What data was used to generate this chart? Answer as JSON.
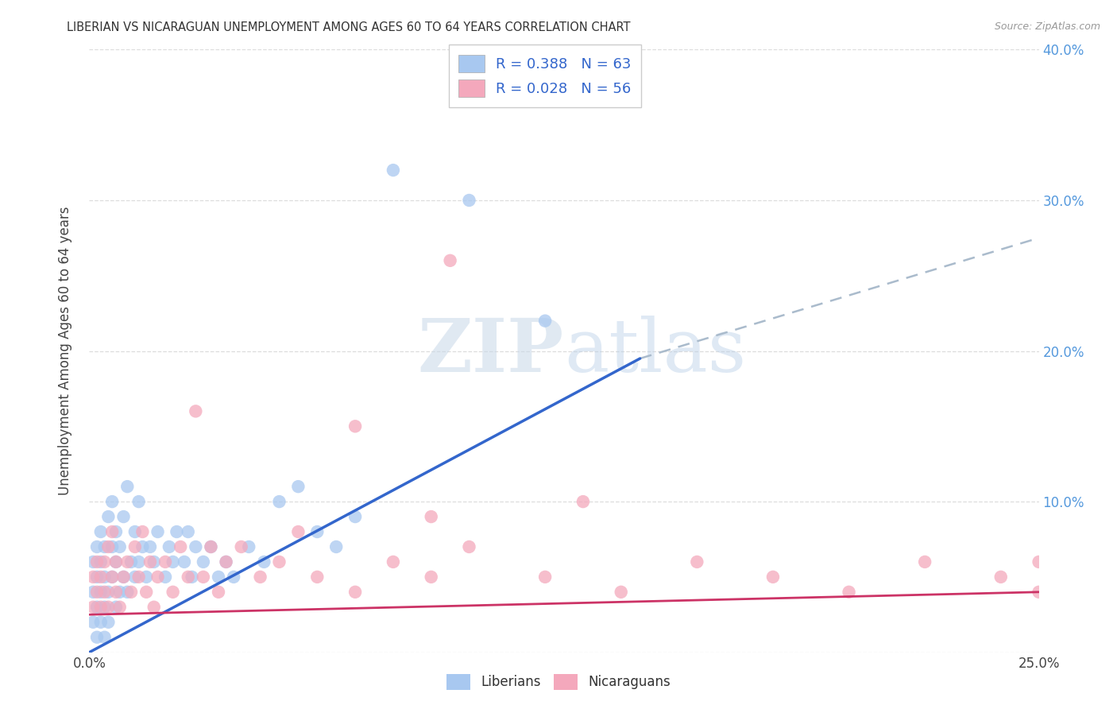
{
  "title": "LIBERIAN VS NICARAGUAN UNEMPLOYMENT AMONG AGES 60 TO 64 YEARS CORRELATION CHART",
  "source": "Source: ZipAtlas.com",
  "ylabel": "Unemployment Among Ages 60 to 64 years",
  "xlim": [
    0.0,
    0.25
  ],
  "ylim": [
    0.0,
    0.4
  ],
  "xticks": [
    0.0,
    0.05,
    0.1,
    0.15,
    0.2,
    0.25
  ],
  "yticks": [
    0.0,
    0.1,
    0.2,
    0.3,
    0.4
  ],
  "liberian_R": 0.388,
  "liberian_N": 63,
  "nicaraguan_R": 0.028,
  "nicaraguan_N": 56,
  "liberian_color": "#a8c8f0",
  "nicaraguan_color": "#f4a8bc",
  "liberian_line_color": "#3366cc",
  "nicaraguan_line_color": "#cc3366",
  "dashed_line_color": "#aabbcc",
  "background_color": "#ffffff",
  "grid_color": "#dddddd",
  "tick_color": "#5599dd",
  "watermark_color": "#dce8f4",
  "legend_labels": [
    "Liberians",
    "Nicaraguans"
  ],
  "lib_trend_x0": 0.0,
  "lib_trend_y0": 0.0,
  "lib_trend_x1": 0.145,
  "lib_trend_y1": 0.195,
  "dash_trend_x0": 0.145,
  "dash_trend_y0": 0.195,
  "dash_trend_x1": 0.25,
  "dash_trend_y1": 0.275,
  "nic_trend_x0": 0.0,
  "nic_trend_y0": 0.025,
  "nic_trend_x1": 0.25,
  "nic_trend_y1": 0.04,
  "lib_scatter_x": [
    0.001,
    0.001,
    0.001,
    0.002,
    0.002,
    0.002,
    0.002,
    0.003,
    0.003,
    0.003,
    0.003,
    0.004,
    0.004,
    0.004,
    0.004,
    0.005,
    0.005,
    0.005,
    0.006,
    0.006,
    0.006,
    0.007,
    0.007,
    0.007,
    0.008,
    0.008,
    0.009,
    0.009,
    0.01,
    0.01,
    0.011,
    0.012,
    0.012,
    0.013,
    0.013,
    0.014,
    0.015,
    0.016,
    0.017,
    0.018,
    0.02,
    0.021,
    0.022,
    0.023,
    0.025,
    0.026,
    0.027,
    0.028,
    0.03,
    0.032,
    0.034,
    0.036,
    0.038,
    0.042,
    0.046,
    0.05,
    0.055,
    0.06,
    0.065,
    0.07,
    0.08,
    0.1,
    0.12
  ],
  "lib_scatter_y": [
    0.02,
    0.04,
    0.06,
    0.01,
    0.03,
    0.05,
    0.07,
    0.02,
    0.04,
    0.06,
    0.08,
    0.01,
    0.03,
    0.05,
    0.07,
    0.02,
    0.09,
    0.04,
    0.05,
    0.07,
    0.1,
    0.03,
    0.06,
    0.08,
    0.04,
    0.07,
    0.05,
    0.09,
    0.04,
    0.11,
    0.06,
    0.05,
    0.08,
    0.06,
    0.1,
    0.07,
    0.05,
    0.07,
    0.06,
    0.08,
    0.05,
    0.07,
    0.06,
    0.08,
    0.06,
    0.08,
    0.05,
    0.07,
    0.06,
    0.07,
    0.05,
    0.06,
    0.05,
    0.07,
    0.06,
    0.1,
    0.11,
    0.08,
    0.07,
    0.09,
    0.32,
    0.3,
    0.22
  ],
  "nic_scatter_x": [
    0.001,
    0.001,
    0.002,
    0.002,
    0.003,
    0.003,
    0.004,
    0.004,
    0.005,
    0.005,
    0.006,
    0.006,
    0.007,
    0.007,
    0.008,
    0.009,
    0.01,
    0.011,
    0.012,
    0.013,
    0.014,
    0.015,
    0.016,
    0.017,
    0.018,
    0.02,
    0.022,
    0.024,
    0.026,
    0.028,
    0.03,
    0.032,
    0.034,
    0.036,
    0.04,
    0.045,
    0.05,
    0.055,
    0.06,
    0.07,
    0.08,
    0.09,
    0.1,
    0.12,
    0.14,
    0.16,
    0.18,
    0.2,
    0.22,
    0.24,
    0.25,
    0.25,
    0.09,
    0.07,
    0.13,
    0.095
  ],
  "nic_scatter_y": [
    0.03,
    0.05,
    0.04,
    0.06,
    0.03,
    0.05,
    0.04,
    0.06,
    0.03,
    0.07,
    0.05,
    0.08,
    0.04,
    0.06,
    0.03,
    0.05,
    0.06,
    0.04,
    0.07,
    0.05,
    0.08,
    0.04,
    0.06,
    0.03,
    0.05,
    0.06,
    0.04,
    0.07,
    0.05,
    0.16,
    0.05,
    0.07,
    0.04,
    0.06,
    0.07,
    0.05,
    0.06,
    0.08,
    0.05,
    0.04,
    0.06,
    0.05,
    0.07,
    0.05,
    0.04,
    0.06,
    0.05,
    0.04,
    0.06,
    0.05,
    0.04,
    0.06,
    0.09,
    0.15,
    0.1,
    0.26
  ]
}
